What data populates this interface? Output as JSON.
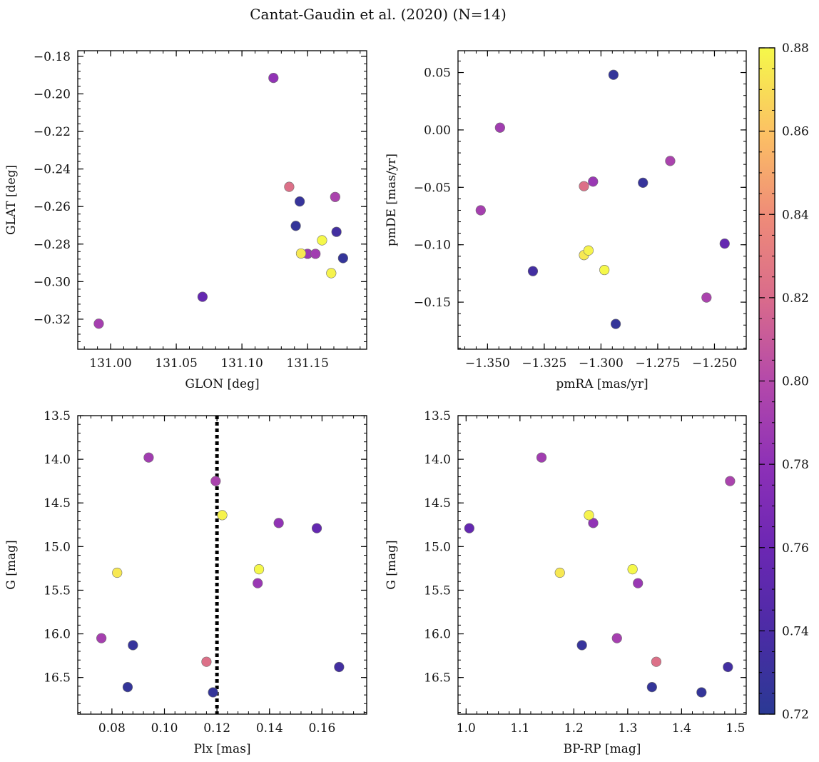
{
  "figure": {
    "title": "Cantat-Gaudin et al. (2020) (N=14)"
  },
  "colorbar": {
    "min": 0.72,
    "max": 0.88,
    "ticks": [
      "0.72",
      "0.74",
      "0.76",
      "0.78",
      "0.80",
      "0.82",
      "0.84",
      "0.86",
      "0.88"
    ],
    "colormap": "plasma"
  },
  "chart_data": [
    {
      "type": "scatter",
      "id": "glon-glat",
      "xlabel": "GLON [deg]",
      "ylabel": "GLAT [deg]",
      "xlim": [
        130.975,
        131.195
      ],
      "ylim": [
        -0.336,
        -0.177
      ],
      "xticks": [
        131.0,
        131.05,
        131.1,
        131.15
      ],
      "xtick_labels": [
        "131.00",
        "131.05",
        "131.10",
        "131.15"
      ],
      "yticks": [
        -0.18,
        -0.2,
        -0.22,
        -0.24,
        -0.26,
        -0.28,
        -0.3,
        -0.32
      ],
      "ytick_labels": [
        "−0.18",
        "−0.20",
        "−0.22",
        "−0.24",
        "−0.26",
        "−0.28",
        "−0.30",
        "−0.32"
      ],
      "invert_y": false,
      "points": [
        {
          "x": 131.124,
          "y": -0.1915,
          "c": 0.782
        },
        {
          "x": 131.136,
          "y": -0.2495,
          "c": 0.823
        },
        {
          "x": 131.144,
          "y": -0.2573,
          "c": 0.728
        },
        {
          "x": 131.171,
          "y": -0.2549,
          "c": 0.795
        },
        {
          "x": 131.141,
          "y": -0.2703,
          "c": 0.726
        },
        {
          "x": 131.172,
          "y": -0.2735,
          "c": 0.735
        },
        {
          "x": 131.161,
          "y": -0.278,
          "c": 0.88
        },
        {
          "x": 131.145,
          "y": -0.285,
          "c": 0.874
        },
        {
          "x": 131.15,
          "y": -0.2852,
          "c": 0.786
        },
        {
          "x": 131.156,
          "y": -0.2852,
          "c": 0.79
        },
        {
          "x": 131.177,
          "y": -0.2875,
          "c": 0.726
        },
        {
          "x": 131.168,
          "y": -0.2955,
          "c": 0.878
        },
        {
          "x": 131.07,
          "y": -0.3081,
          "c": 0.755
        },
        {
          "x": 130.991,
          "y": -0.3224,
          "c": 0.792
        }
      ]
    },
    {
      "type": "scatter",
      "id": "pmra-pmde",
      "xlabel": "pmRA [mas/yr]",
      "ylabel": "pmDE [mas/yr]",
      "xlim": [
        -1.363,
        -1.236
      ],
      "ylim": [
        -0.191,
        0.069
      ],
      "xticks": [
        -1.35,
        -1.325,
        -1.3,
        -1.275,
        -1.25
      ],
      "xtick_labels": [
        "−1.350",
        "−1.325",
        "−1.300",
        "−1.275",
        "−1.250"
      ],
      "yticks": [
        0.05,
        0.0,
        -0.05,
        -0.1,
        -0.15
      ],
      "ytick_labels": [
        "0.05",
        "0.00",
        "−0.05",
        "−0.10",
        "−0.15"
      ],
      "invert_y": false,
      "points": [
        {
          "x": -1.2945,
          "y": 0.048,
          "c": 0.726
        },
        {
          "x": -1.3445,
          "y": 0.002,
          "c": 0.79
        },
        {
          "x": -1.2695,
          "y": -0.027,
          "c": 0.795
        },
        {
          "x": -1.3035,
          "y": -0.045,
          "c": 0.786
        },
        {
          "x": -1.3075,
          "y": -0.049,
          "c": 0.823
        },
        {
          "x": -1.2815,
          "y": -0.046,
          "c": 0.728
        },
        {
          "x": -1.353,
          "y": -0.07,
          "c": 0.792
        },
        {
          "x": -1.2455,
          "y": -0.099,
          "c": 0.755
        },
        {
          "x": -1.3055,
          "y": -0.105,
          "c": 0.878
        },
        {
          "x": -1.3075,
          "y": -0.109,
          "c": 0.874
        },
        {
          "x": -1.2985,
          "y": -0.122,
          "c": 0.88
        },
        {
          "x": -1.33,
          "y": -0.123,
          "c": 0.735
        },
        {
          "x": -1.2535,
          "y": -0.146,
          "c": 0.795
        },
        {
          "x": -1.2935,
          "y": -0.169,
          "c": 0.726
        }
      ]
    },
    {
      "type": "scatter",
      "id": "plx-g",
      "xlabel": "Plx [mas]",
      "ylabel": "G [mag]",
      "xlim": [
        0.067,
        0.177
      ],
      "ylim": [
        13.5,
        16.92
      ],
      "xticks": [
        0.08,
        0.1,
        0.12,
        0.14,
        0.16
      ],
      "xtick_labels": [
        "0.08",
        "0.10",
        "0.12",
        "0.14",
        "0.16"
      ],
      "yticks": [
        13.5,
        14.0,
        14.5,
        15.0,
        15.5,
        16.0,
        16.5
      ],
      "ytick_labels": [
        "13.5",
        "14.0",
        "14.5",
        "15.0",
        "15.5",
        "16.0",
        "16.5"
      ],
      "invert_y": true,
      "vline": 0.12,
      "points": [
        {
          "x": 0.094,
          "y": 13.98,
          "c": 0.79
        },
        {
          "x": 0.1195,
          "y": 14.25,
          "c": 0.795
        },
        {
          "x": 0.122,
          "y": 14.64,
          "c": 0.878
        },
        {
          "x": 0.1435,
          "y": 14.73,
          "c": 0.782
        },
        {
          "x": 0.158,
          "y": 14.79,
          "c": 0.755
        },
        {
          "x": 0.082,
          "y": 15.3,
          "c": 0.874
        },
        {
          "x": 0.136,
          "y": 15.26,
          "c": 0.88
        },
        {
          "x": 0.1355,
          "y": 15.42,
          "c": 0.786
        },
        {
          "x": 0.076,
          "y": 16.05,
          "c": 0.792
        },
        {
          "x": 0.088,
          "y": 16.13,
          "c": 0.728
        },
        {
          "x": 0.116,
          "y": 16.32,
          "c": 0.823
        },
        {
          "x": 0.1665,
          "y": 16.38,
          "c": 0.735
        },
        {
          "x": 0.086,
          "y": 16.61,
          "c": 0.726
        },
        {
          "x": 0.1185,
          "y": 16.67,
          "c": 0.726
        }
      ]
    },
    {
      "type": "scatter",
      "id": "bprp-g",
      "xlabel": "BP-RP [mag]",
      "ylabel": "G [mag]",
      "xlim": [
        0.985,
        1.52
      ],
      "ylim": [
        13.5,
        16.92
      ],
      "xticks": [
        1.0,
        1.1,
        1.2,
        1.3,
        1.4,
        1.5
      ],
      "xtick_labels": [
        "1.0",
        "1.1",
        "1.2",
        "1.3",
        "1.4",
        "1.5"
      ],
      "yticks": [
        13.5,
        14.0,
        14.5,
        15.0,
        15.5,
        16.0,
        16.5
      ],
      "ytick_labels": [
        "13.5",
        "14.0",
        "14.5",
        "15.0",
        "15.5",
        "16.0",
        "16.5"
      ],
      "invert_y": true,
      "points": [
        {
          "x": 1.14,
          "y": 13.98,
          "c": 0.79
        },
        {
          "x": 1.49,
          "y": 14.25,
          "c": 0.795
        },
        {
          "x": 1.228,
          "y": 14.64,
          "c": 0.878
        },
        {
          "x": 1.236,
          "y": 14.73,
          "c": 0.782
        },
        {
          "x": 1.006,
          "y": 14.79,
          "c": 0.755
        },
        {
          "x": 1.174,
          "y": 15.3,
          "c": 0.874
        },
        {
          "x": 1.309,
          "y": 15.26,
          "c": 0.88
        },
        {
          "x": 1.319,
          "y": 15.42,
          "c": 0.786
        },
        {
          "x": 1.28,
          "y": 16.05,
          "c": 0.792
        },
        {
          "x": 1.215,
          "y": 16.13,
          "c": 0.728
        },
        {
          "x": 1.353,
          "y": 16.32,
          "c": 0.823
        },
        {
          "x": 1.486,
          "y": 16.38,
          "c": 0.735
        },
        {
          "x": 1.345,
          "y": 16.61,
          "c": 0.726
        },
        {
          "x": 1.437,
          "y": 16.67,
          "c": 0.726
        }
      ]
    }
  ]
}
